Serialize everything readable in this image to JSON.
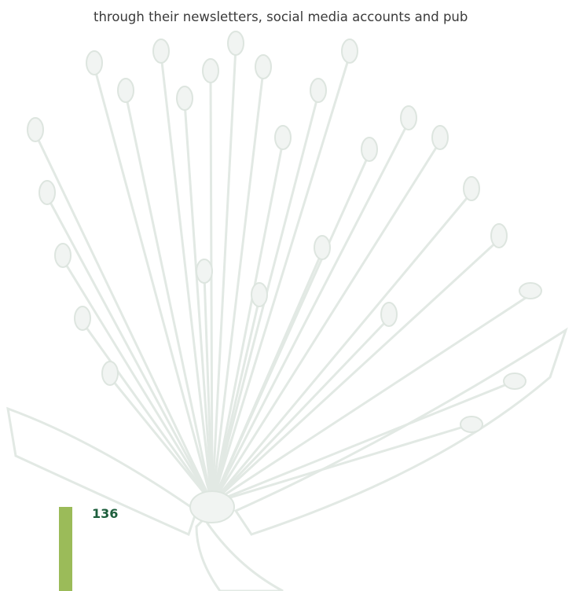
{
  "body": {
    "text": "through their newsletters, social media accounts and pub"
  },
  "page_number": "136"
}
